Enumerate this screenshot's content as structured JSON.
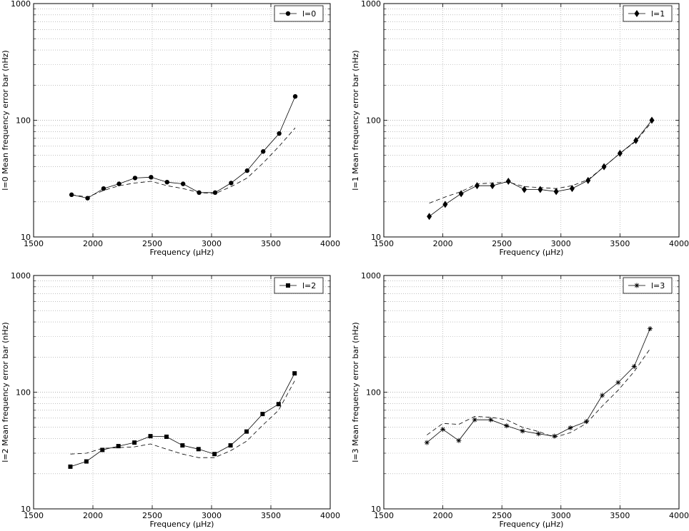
{
  "chart_data": [
    {
      "type": "line",
      "xlabel": "Frequency (µHz)",
      "ylabel": "l=0 Mean frequency error bar (nHz)",
      "xlim": [
        1500,
        4000
      ],
      "ylim": [
        10,
        1000
      ],
      "yscale": "log",
      "xticks": [
        1500,
        2000,
        2500,
        3000,
        3500,
        4000
      ],
      "yticks": [
        10,
        100,
        1000
      ],
      "grid": true,
      "legend": "top-right",
      "series": [
        {
          "name": "l=0",
          "marker": "circle",
          "style": "solid",
          "x": [
            1820,
            1955,
            2090,
            2220,
            2355,
            2490,
            2625,
            2760,
            2895,
            3030,
            3165,
            3300,
            3435,
            3570,
            3705
          ],
          "y": [
            23,
            21.5,
            26,
            28.5,
            32,
            32.5,
            29.5,
            28.5,
            24,
            24,
            29,
            37,
            54,
            77,
            160
          ]
        },
        {
          "marker": "none",
          "style": "dashed",
          "x": [
            1820,
            1955,
            2090,
            2220,
            2355,
            2490,
            2625,
            2760,
            2895,
            3030,
            3165,
            3300,
            3435,
            3570,
            3705
          ],
          "y": [
            23,
            22,
            25,
            27.5,
            29,
            30,
            27.5,
            26,
            24,
            23.5,
            27,
            32,
            43,
            60,
            86
          ]
        }
      ]
    },
    {
      "type": "line",
      "xlabel": "Frequency (µHz)",
      "ylabel": "l=1 Mean frequency error bar (nHz)",
      "xlim": [
        1500,
        4000
      ],
      "ylim": [
        10,
        1000
      ],
      "yscale": "log",
      "xticks": [
        1500,
        2000,
        2500,
        3000,
        3500,
        4000
      ],
      "yticks": [
        10,
        100,
        1000
      ],
      "grid": true,
      "legend": "top-right",
      "series": [
        {
          "name": "l=1",
          "marker": "diamond",
          "style": "solid",
          "x": [
            1885,
            2020,
            2155,
            2290,
            2420,
            2555,
            2690,
            2825,
            2960,
            3095,
            3230,
            3365,
            3500,
            3635,
            3770
          ],
          "y": [
            15,
            19,
            23.5,
            27.5,
            27.5,
            30,
            25.5,
            25.5,
            24.5,
            26,
            30.5,
            40,
            52,
            67,
            100
          ]
        },
        {
          "marker": "none",
          "style": "dashed",
          "x": [
            1885,
            2020,
            2155,
            2290,
            2420,
            2555,
            2690,
            2825,
            2960,
            3095,
            3230,
            3365,
            3500,
            3635,
            3770
          ],
          "y": [
            19.5,
            22,
            24.5,
            28.5,
            29,
            29.5,
            27,
            26.5,
            26,
            27.5,
            31,
            40,
            52,
            66,
            97
          ]
        }
      ]
    },
    {
      "type": "line",
      "xlabel": "Frequency (µHz)",
      "ylabel": "l=2 Mean frequency error bar (nHz)",
      "xlim": [
        1500,
        4000
      ],
      "ylim": [
        10,
        1000
      ],
      "yscale": "log",
      "xticks": [
        1500,
        2000,
        2500,
        3000,
        3500,
        4000
      ],
      "yticks": [
        10,
        100,
        1000
      ],
      "grid": true,
      "legend": "top-right",
      "series": [
        {
          "name": "l=2",
          "marker": "square",
          "style": "solid",
          "x": [
            1810,
            1945,
            2080,
            2215,
            2350,
            2485,
            2620,
            2755,
            2890,
            3025,
            3160,
            3295,
            3430,
            3565,
            3700
          ],
          "y": [
            23,
            25.5,
            32,
            34.5,
            37,
            42,
            41.5,
            35,
            32.5,
            29.5,
            35,
            46,
            65,
            79,
            145
          ]
        },
        {
          "marker": "none",
          "style": "dashed",
          "x": [
            1810,
            1945,
            2080,
            2215,
            2350,
            2485,
            2620,
            2755,
            2890,
            3025,
            3160,
            3295,
            3430,
            3565,
            3700
          ],
          "y": [
            29.5,
            30,
            33,
            33.5,
            34,
            36,
            32.5,
            29.5,
            27.5,
            27.5,
            31.5,
            38,
            52,
            70,
            125
          ]
        }
      ]
    },
    {
      "type": "line",
      "xlabel": "Frequency (µHz)",
      "ylabel": "l=3 Mean frequency error bar (nHz)",
      "xlim": [
        1500,
        4000
      ],
      "ylim": [
        10,
        1000
      ],
      "yscale": "log",
      "xticks": [
        1500,
        2000,
        2500,
        3000,
        3500,
        4000
      ],
      "yticks": [
        10,
        100,
        1000
      ],
      "grid": true,
      "legend": "top-right",
      "series": [
        {
          "name": "l=3",
          "marker": "star",
          "style": "solid",
          "x": [
            1865,
            2000,
            2135,
            2270,
            2405,
            2540,
            2675,
            2810,
            2945,
            3080,
            3215,
            3350,
            3485,
            3620,
            3755
          ],
          "y": [
            37,
            48,
            38.5,
            58,
            58,
            51.5,
            46.5,
            44,
            42,
            49.5,
            56,
            94,
            121,
            166,
            350
          ]
        },
        {
          "marker": "none",
          "style": "dashed",
          "x": [
            1865,
            2000,
            2135,
            2270,
            2405,
            2540,
            2675,
            2810,
            2945,
            3080,
            3215,
            3350,
            3485,
            3620,
            3755
          ],
          "y": [
            43,
            54,
            53,
            62,
            61,
            58,
            50,
            46,
            41,
            45,
            54,
            76,
            104,
            150,
            235
          ]
        }
      ]
    }
  ]
}
